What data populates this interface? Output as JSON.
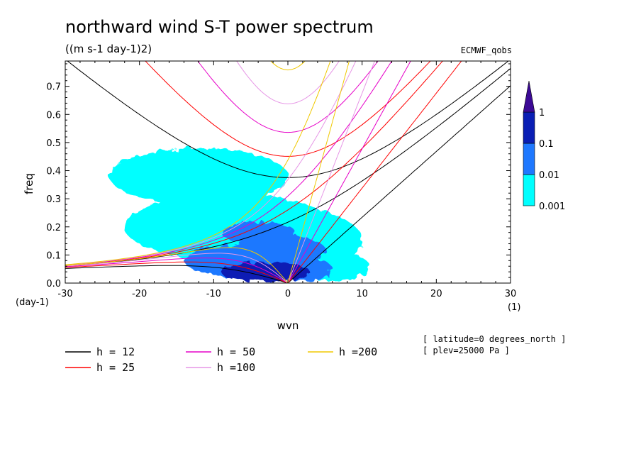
{
  "chart_data": {
    "type": "heatmap",
    "title": "northward wind S-T power spectrum",
    "subtitle": "((m s-1 day-1)2)",
    "dataset": "ECMWF_qobs",
    "xlabel": "wvn",
    "ylabel": "freq",
    "x_unit": "(1)",
    "y_unit": "(day-1)",
    "xlim": [
      -30,
      30
    ],
    "ylim": [
      0,
      0.79
    ],
    "x_ticks": [
      -30,
      -20,
      -10,
      0,
      10,
      20,
      30
    ],
    "x_tick_labels": [
      "-30",
      "-20",
      "-10",
      "0",
      "10",
      "20",
      "30"
    ],
    "y_ticks": [
      0,
      0.1,
      0.2,
      0.3,
      0.4,
      0.5,
      0.6,
      0.7
    ],
    "y_tick_labels": [
      "0.0",
      "0.1",
      "0.2",
      "0.3",
      "0.4",
      "0.5",
      "0.6",
      "0.7"
    ],
    "colorbar": {
      "levels": [
        0.001,
        0.01,
        0.1,
        1
      ],
      "labels": [
        "0.001",
        "0.01",
        "0.1",
        "1"
      ],
      "colors": [
        "#00ffff",
        "#1e78ff",
        "#0a1eb4",
        "#3c0a96"
      ]
    },
    "power_blobs": [
      {
        "x": -5,
        "y": 0.08,
        "rx": 9,
        "ry": 0.06,
        "level": 1
      },
      {
        "x": -3,
        "y": 0.04,
        "rx": 6,
        "ry": 0.035,
        "level": 2
      },
      {
        "x": 2,
        "y": 0.05,
        "rx": 4,
        "ry": 0.04,
        "level": 1
      },
      {
        "x": -8,
        "y": 0.2,
        "rx": 14,
        "ry": 0.12,
        "level": 0
      },
      {
        "x": -12,
        "y": 0.38,
        "rx": 12,
        "ry": 0.1,
        "level": 0
      },
      {
        "x": 0,
        "y": 0.15,
        "rx": 10,
        "ry": 0.12,
        "level": 0
      },
      {
        "x": 6,
        "y": 0.06,
        "rx": 5,
        "ry": 0.05,
        "level": 0
      },
      {
        "x": -1,
        "y": 0.12,
        "rx": 6,
        "ry": 0.05,
        "level": 1
      },
      {
        "x": -4,
        "y": 0.18,
        "rx": 5,
        "ry": 0.04,
        "level": 1
      }
    ],
    "dispersion_curves": [
      {
        "name": "h = 12",
        "h": 12,
        "color": "#000000"
      },
      {
        "name": "h = 25",
        "h": 25,
        "color": "#ff0000"
      },
      {
        "name": "h = 50",
        "h": 50,
        "color": "#e600c8"
      },
      {
        "name": "h =100",
        "h": 100,
        "color": "#e696e6"
      },
      {
        "name": "h =200",
        "h": 200,
        "color": "#f0c800"
      }
    ],
    "annotations": [
      "[ latitude=0 degrees_north ]",
      "[ plev=25000 Pa ]"
    ]
  }
}
